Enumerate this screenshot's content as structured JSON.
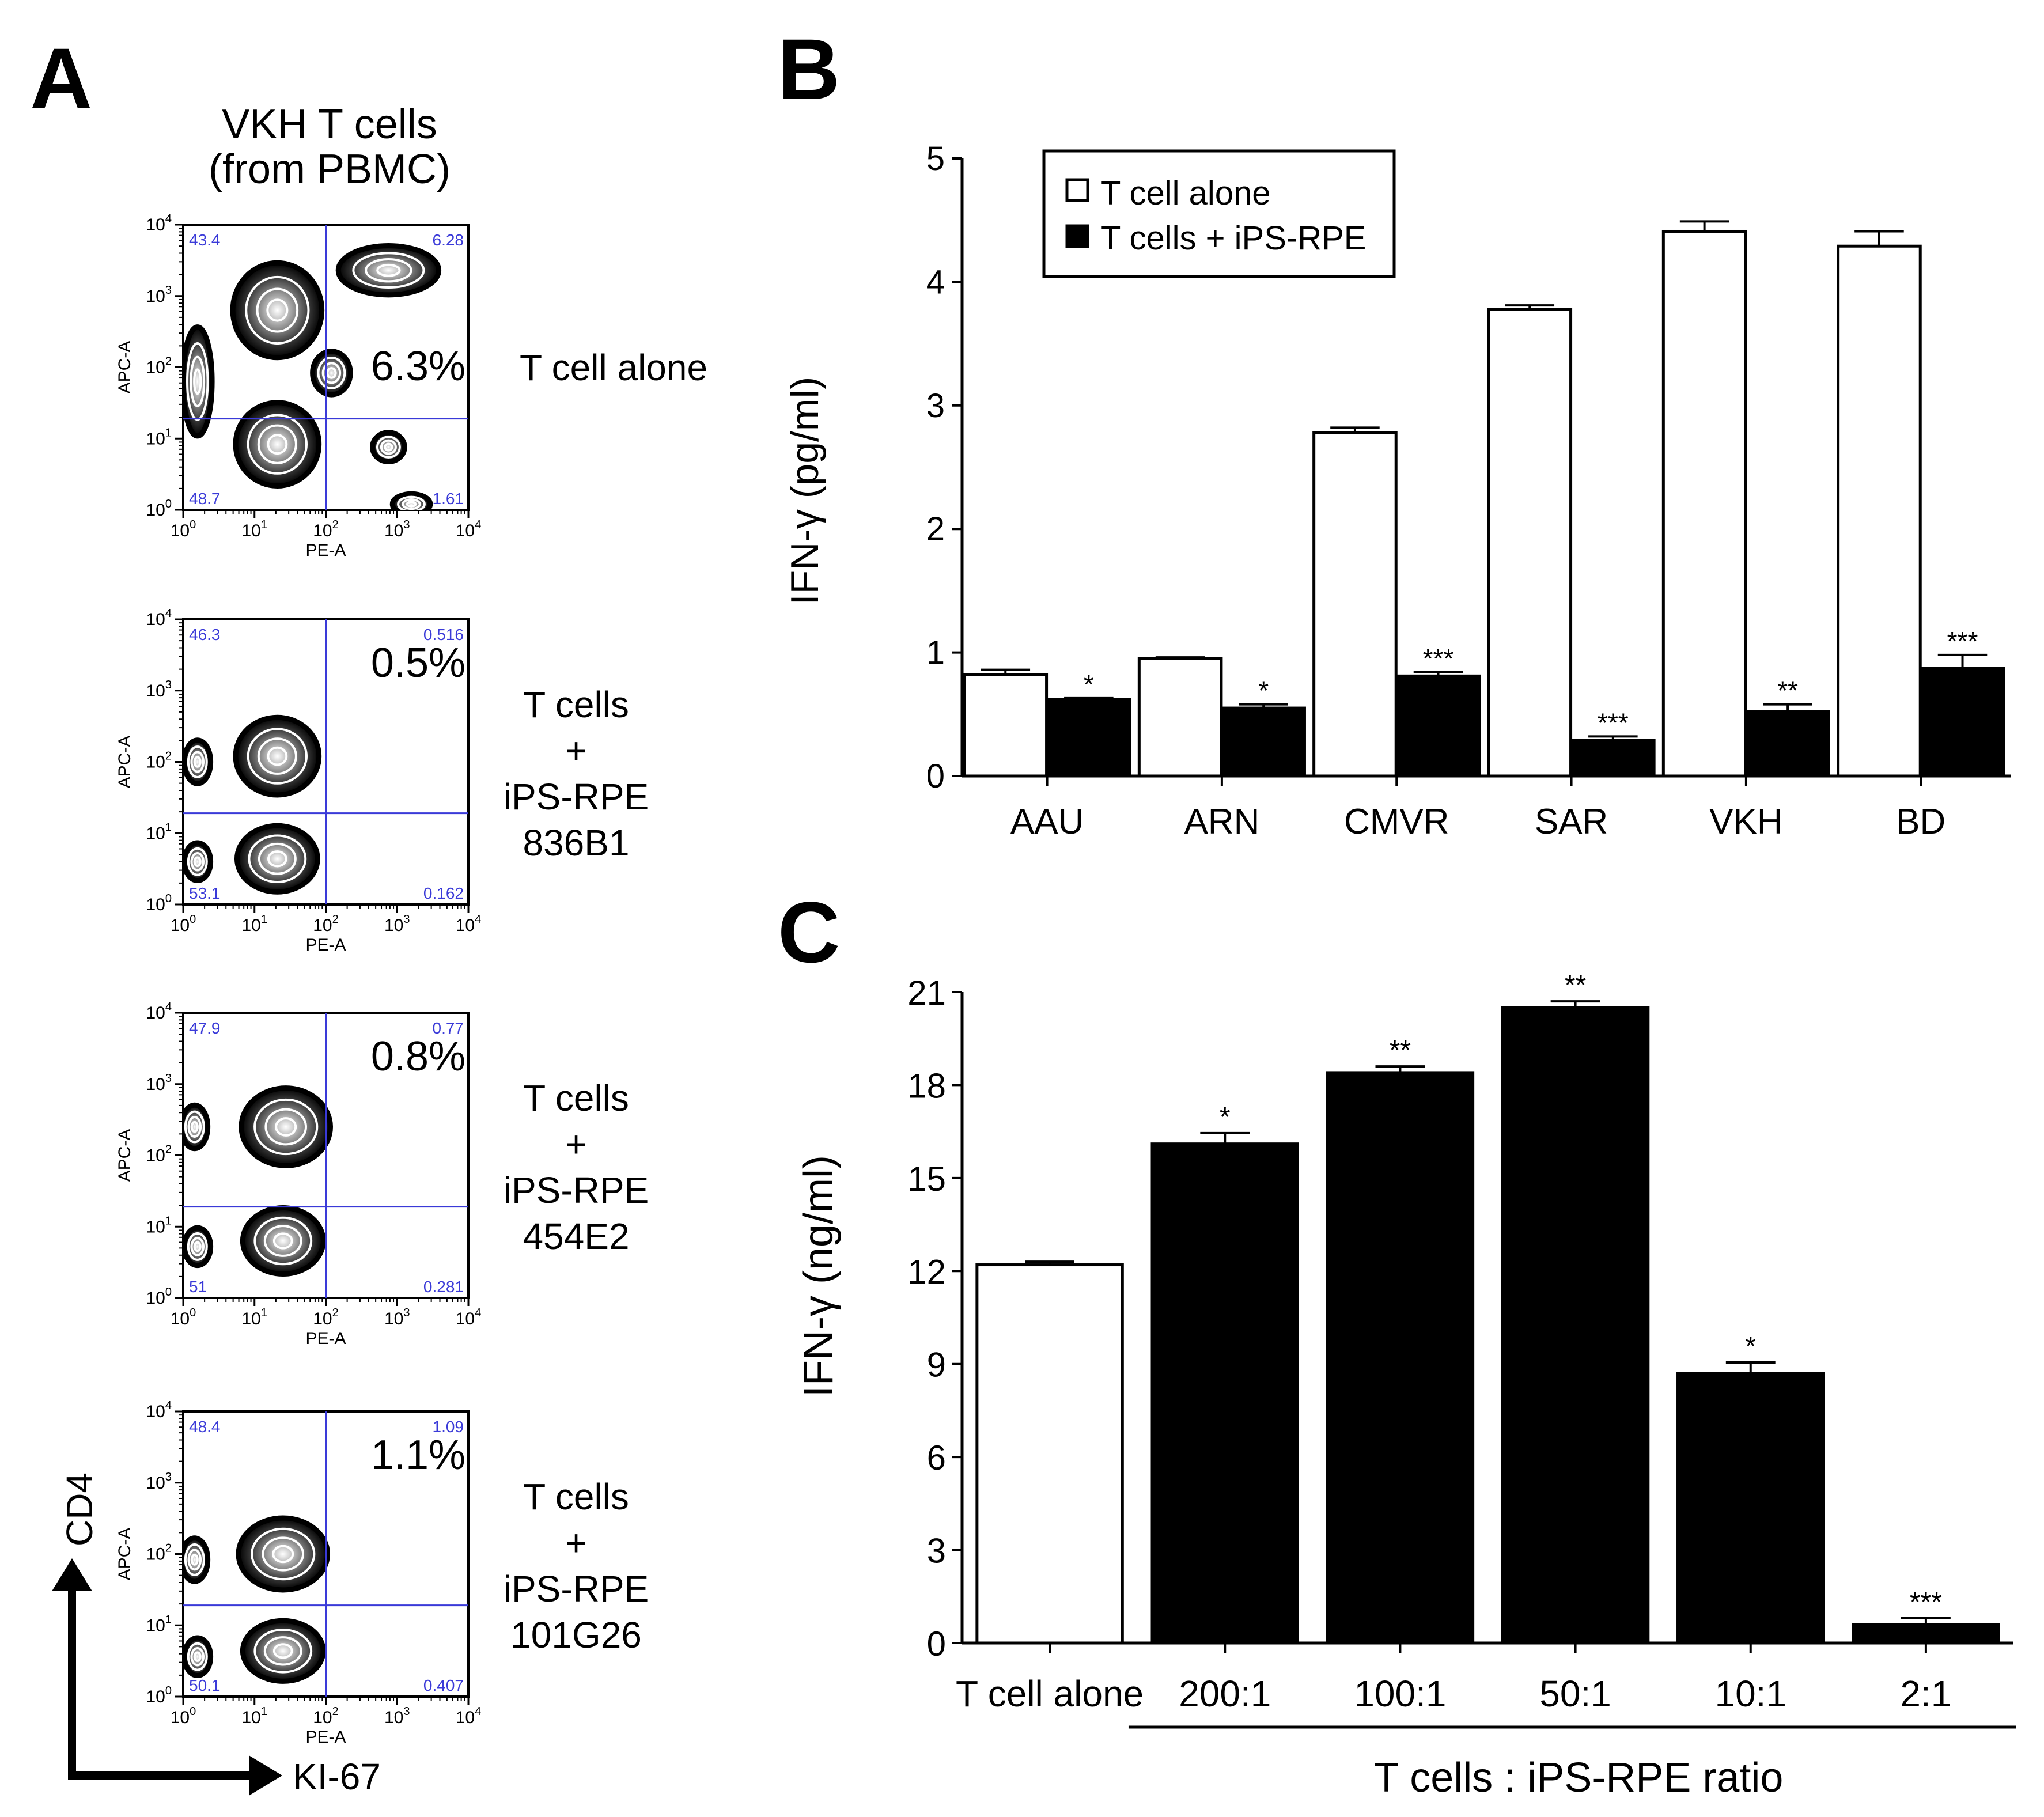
{
  "panel_letters": {
    "a": "A",
    "b": "B",
    "c": "C"
  },
  "panel_a": {
    "title_line1": "VKH T cells",
    "title_line2": "(from PBMC)",
    "x_axis_small": "PE-A",
    "y_axis_small": "APC-A",
    "tick_base": "10",
    "tick_exponents": [
      "0",
      "1",
      "2",
      "3",
      "4"
    ],
    "y_marker": "CD4",
    "x_marker": "KI-67",
    "plots": [
      {
        "q_ul": "43.4",
        "q_ur": "6.28",
        "q_ll": "48.7",
        "q_lr": "1.61",
        "percent": "6.3%",
        "label_lines": [
          "T cell alone"
        ]
      },
      {
        "q_ul": "46.3",
        "q_ur": "0.516",
        "q_ll": "53.1",
        "q_lr": "0.162",
        "percent": "0.5%",
        "label_lines": [
          "T cells",
          "+",
          "iPS-RPE",
          "836B1"
        ]
      },
      {
        "q_ul": "47.9",
        "q_ur": "0.77",
        "q_ll": "51",
        "q_lr": "0.281",
        "percent": "0.8%",
        "label_lines": [
          "T cells",
          "+",
          "iPS-RPE",
          "454E2"
        ]
      },
      {
        "q_ul": "48.4",
        "q_ur": "1.09",
        "q_ll": "50.1",
        "q_lr": "0.407",
        "percent": "1.1%",
        "label_lines": [
          "T cells",
          "+",
          "iPS-RPE",
          "101G26"
        ]
      }
    ]
  },
  "chart_data": [
    {
      "type": "bar",
      "panel": "B",
      "ylabel": "IFN-γ (pg/ml)",
      "ylim": [
        0,
        5
      ],
      "yticks": [
        "0",
        "1",
        "2",
        "3",
        "4",
        "5"
      ],
      "categories": [
        "AAU",
        "ARN",
        "CMVR",
        "SAR",
        "VKH",
        "BD"
      ],
      "series": [
        {
          "name": "T cell alone",
          "values": [
            0.82,
            0.95,
            2.78,
            3.78,
            4.41,
            4.29
          ],
          "errors": [
            0.04,
            0.01,
            0.04,
            0.03,
            0.08,
            0.12
          ]
        },
        {
          "name": "T cells + iPS-RPE",
          "values": [
            0.62,
            0.55,
            0.81,
            0.29,
            0.52,
            0.87
          ],
          "errors": [
            0.01,
            0.03,
            0.03,
            0.03,
            0.06,
            0.11
          ]
        }
      ],
      "significance": [
        "*",
        "*",
        "***",
        "***",
        "**",
        "***"
      ],
      "legend": [
        "T cell alone",
        "T cells + iPS-RPE"
      ],
      "legend_position": "top-left"
    },
    {
      "type": "bar",
      "panel": "C",
      "ylabel": "IFN-γ (ng/ml)",
      "ylim": [
        0,
        21
      ],
      "yticks": [
        "0",
        "3",
        "6",
        "9",
        "12",
        "15",
        "18",
        "21"
      ],
      "categories": [
        "T cell alone",
        "200:1",
        "100:1",
        "50:1",
        "10:1",
        "2:1"
      ],
      "values": [
        12.2,
        16.1,
        18.4,
        20.5,
        8.7,
        0.6
      ],
      "errors": [
        0.1,
        0.35,
        0.2,
        0.2,
        0.35,
        0.2
      ],
      "fills": [
        "white",
        "black",
        "black",
        "black",
        "black",
        "black"
      ],
      "significance": [
        "",
        "*",
        "**",
        "**",
        "*",
        "***"
      ],
      "group_label": "T cells : iPS-RPE ratio"
    }
  ]
}
